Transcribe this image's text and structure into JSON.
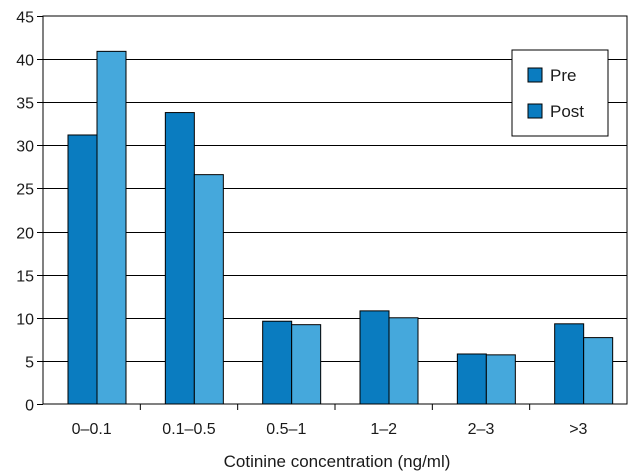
{
  "chart_data": {
    "type": "bar",
    "categories": [
      "0–0.1",
      "0.1–0.5",
      "0.5–1",
      "1–2",
      "2–3",
      ">3"
    ],
    "series": [
      {
        "name": "Pre",
        "values": [
          31.2,
          33.8,
          9.6,
          10.8,
          5.8,
          9.3
        ],
        "color": "#0a7cc0"
      },
      {
        "name": "Post",
        "values": [
          40.9,
          26.6,
          9.2,
          10.0,
          5.7,
          7.7
        ],
        "color": "#45a8dc"
      }
    ],
    "title": "",
    "xlabel": "Cotinine concentration (ng/ml)",
    "ylabel": "",
    "ylim": [
      0,
      45
    ],
    "yticks": [
      0,
      5,
      10,
      15,
      20,
      25,
      30,
      35,
      40,
      45
    ],
    "grid": true,
    "legend_position": "top-right",
    "legend_swatch_color": "#0a7cc0"
  }
}
